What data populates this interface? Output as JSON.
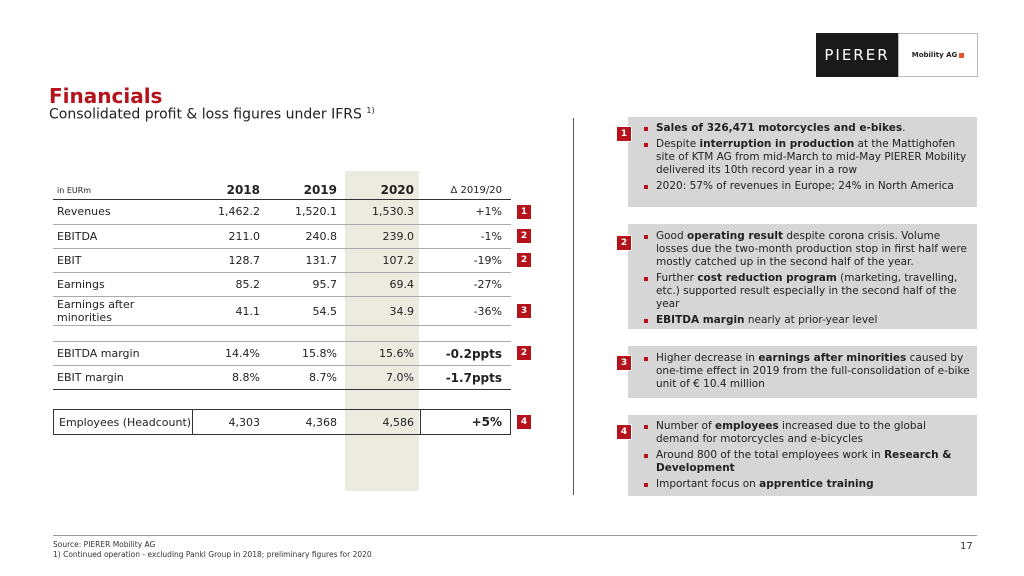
{
  "logo": {
    "left": "PIERER",
    "right": "Mobility AG"
  },
  "title": "Financials",
  "subtitle": "Consolidated profit & loss figures under IFRS",
  "subtitle_sup": "1)",
  "table": {
    "unit": "in EURm",
    "years": [
      "2018",
      "2019",
      "2020"
    ],
    "delta_header": "Δ 2019/20",
    "rows": [
      {
        "label": "Revenues",
        "v": [
          "1,462.2",
          "1,520.1",
          "1,530.3"
        ],
        "d": "+1%",
        "badge": "1"
      },
      {
        "label": "EBITDA",
        "v": [
          "211.0",
          "240.8",
          "239.0"
        ],
        "d": "-1%",
        "badge": "2"
      },
      {
        "label": "EBIT",
        "v": [
          "128.7",
          "131.7",
          "107.2"
        ],
        "d": "-19%",
        "badge": "2"
      },
      {
        "label": "Earnings",
        "v": [
          "85.2",
          "95.7",
          "69.4"
        ],
        "d": "-27%",
        "badge": ""
      },
      {
        "label": "Earnings after minorities",
        "v": [
          "41.1",
          "54.5",
          "34.9"
        ],
        "d": "-36%",
        "badge": "3"
      }
    ],
    "margins": [
      {
        "label": "EBITDA margin",
        "v": [
          "14.4%",
          "15.8%",
          "15.6%"
        ],
        "d": "-0.2ppts",
        "badge": "2"
      },
      {
        "label": "EBIT margin",
        "v": [
          "8.8%",
          "8.7%",
          "7.0%"
        ],
        "d": "-1.7ppts",
        "badge": ""
      }
    ],
    "employees": {
      "label": "Employees (Headcount)",
      "v": [
        "4,303",
        "4,368",
        "4,586"
      ],
      "d": "+5%",
      "badge": "4"
    }
  },
  "boxes": [
    {
      "num": "1",
      "items": [
        [
          "",
          "Sales of 326,471 motorcycles and e-bikes",
          "."
        ],
        [
          "Despite ",
          "interruption in production",
          " at the Mattighofen site of KTM AG from mid-March to mid-May PIERER Mobility delivered its 10th record year in a row"
        ],
        [
          "2020: 57% of revenues in Europe; 24% in North America",
          "",
          ""
        ]
      ]
    },
    {
      "num": "2",
      "items": [
        [
          "Good ",
          "operating result",
          " despite corona crisis. Volume losses due the two-month production stop in first half were mostly catched up in the second half of the year."
        ],
        [
          "Further ",
          "cost reduction program",
          " (marketing, travelling, etc.) supported result especially in the second half of the year"
        ],
        [
          "",
          "EBITDA margin",
          " nearly at prior-year level"
        ]
      ]
    },
    {
      "num": "3",
      "items": [
        [
          "Higher decrease in ",
          "earnings after minorities",
          " caused by one-time effect in 2019 from the full-consolidation of e-bike unit of € 10.4 million"
        ]
      ]
    },
    {
      "num": "4",
      "items": [
        [
          "Number of ",
          "employees",
          " increased due to the global demand for motorcycles and e-bicycles"
        ],
        [
          "Around 800 of the total employees work in ",
          "Research & Development",
          ""
        ],
        [
          "Important focus on ",
          "apprentice training",
          ""
        ]
      ]
    }
  ],
  "footer": {
    "source": "Source: PIERER Mobility AG",
    "note": "1) Continued operation - excluding Pankl Group in 2018; preliminary figures for 2020",
    "page": "17"
  }
}
